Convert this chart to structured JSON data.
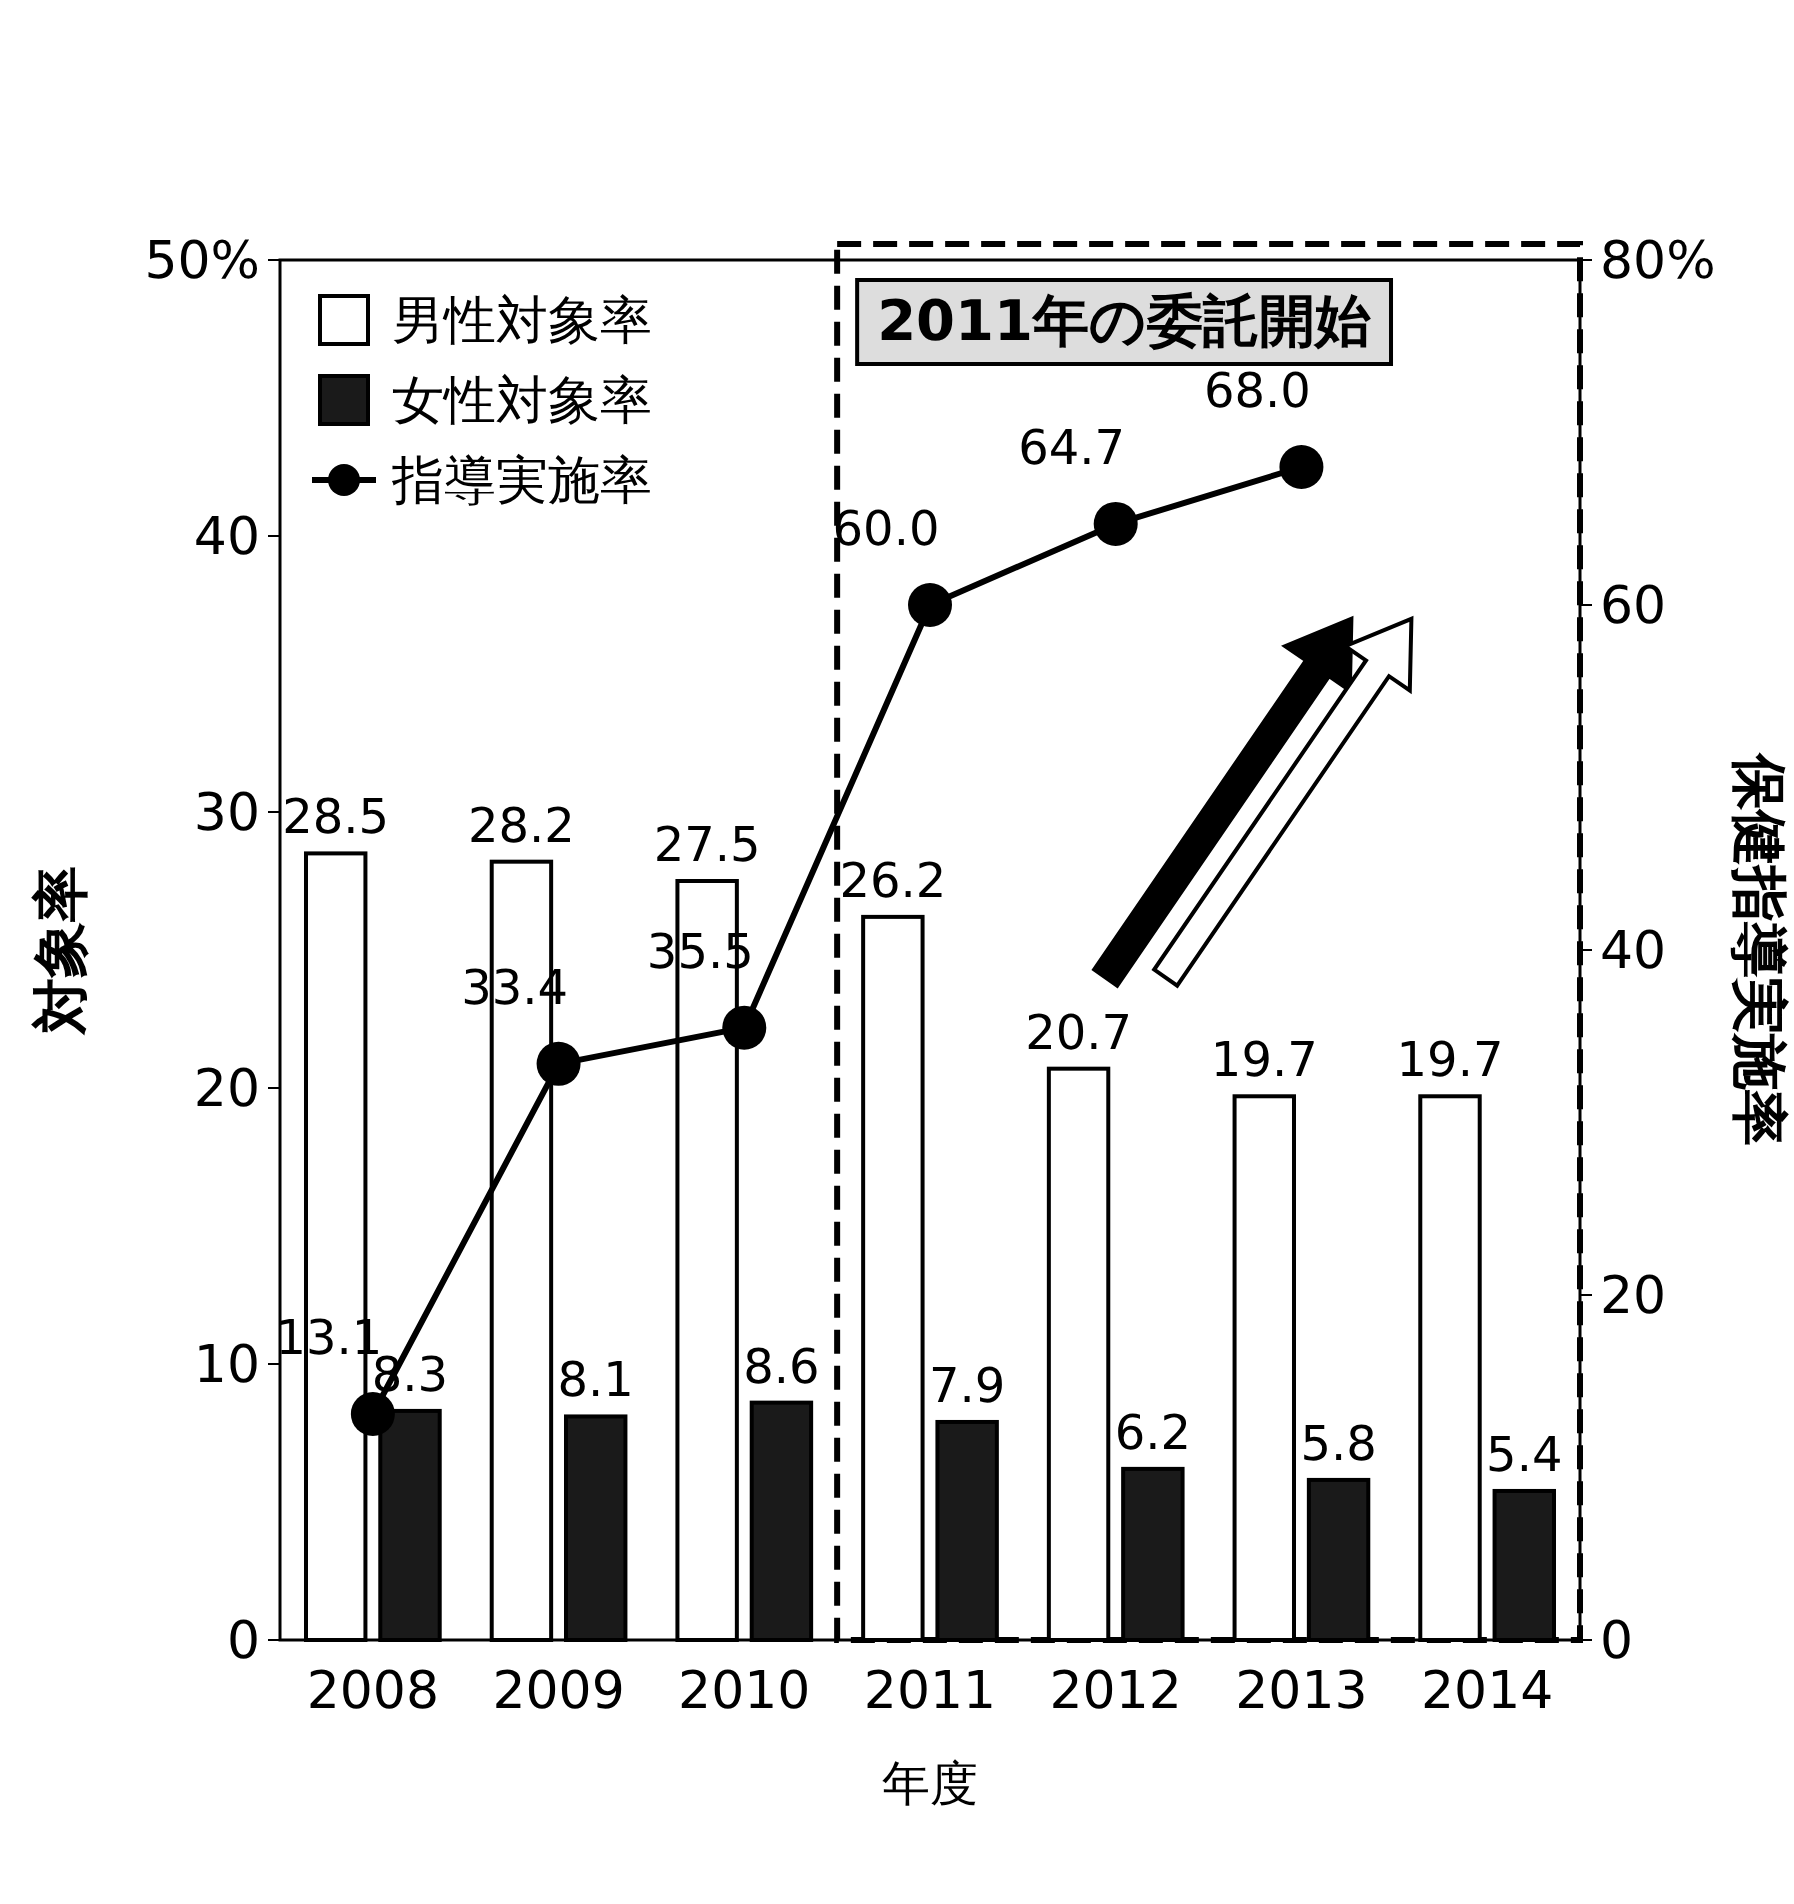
{
  "chart_data": {
    "type": "bar",
    "ylabel": "対象率",
    "y2label": "保健指導実施率",
    "xlabel": "年度",
    "categories": [
      "2008",
      "2009",
      "2010",
      "2011",
      "2012",
      "2013",
      "2014"
    ],
    "series": [
      {
        "name": "男性対象率",
        "color": "#ffffff",
        "values": [
          28.5,
          28.2,
          27.5,
          26.2,
          20.7,
          19.7,
          19.7
        ],
        "value_labels": [
          "28.5",
          "28.2",
          "27.5",
          "26.2",
          "20.7",
          "19.7",
          "19.7"
        ]
      },
      {
        "name": "女性対象率",
        "type": "bar",
        "color": "#1a1a1a",
        "values": [
          8.3,
          8.1,
          8.6,
          7.9,
          6.2,
          5.8,
          5.4
        ],
        "value_labels": [
          "8.3",
          "8.1",
          "8.6",
          "7.9",
          "6.2",
          "5.8",
          "5.4"
        ]
      },
      {
        "name": "指導実施率",
        "type": "line",
        "axis": "y2",
        "color": "#000000",
        "marker": "circle",
        "line_style": "solid",
        "values": [
          13.1,
          33.4,
          35.5,
          60.0,
          64.7,
          68.0,
          null
        ],
        "value_labels": [
          "13.1",
          "33.4",
          "35.5",
          "60.0",
          "64.7",
          "68.0",
          null
        ]
      }
    ],
    "ylim": [
      0,
      50
    ],
    "yticks": [
      0,
      10,
      20,
      30,
      40,
      {
        "value": 50,
        "label": "50%"
      }
    ],
    "y2lim": [
      0,
      80
    ],
    "y2ticks": [
      0,
      20,
      40,
      60,
      {
        "value": 80,
        "label": "80%"
      }
    ],
    "bands": [
      {
        "axis": "x",
        "from": "2011",
        "to": "2014"
      }
    ],
    "annotations": [
      "2011年の委託開始"
    ],
    "legend": "top left",
    "grid": false
  }
}
